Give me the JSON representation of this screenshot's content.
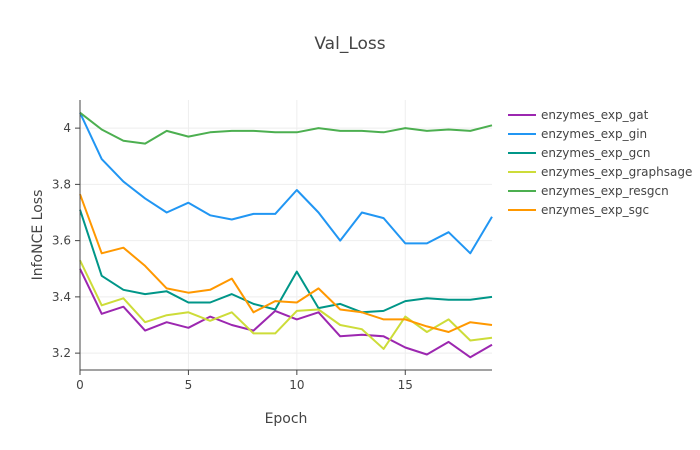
{
  "chart_data": {
    "type": "line",
    "title": "Val_Loss",
    "xlabel": "Epoch",
    "ylabel": "InfoNCE Loss",
    "xlim": [
      0,
      19
    ],
    "ylim": [
      3.14,
      4.1
    ],
    "x_ticks": [
      0,
      5,
      10,
      15
    ],
    "y_ticks": [
      3.2,
      3.4,
      3.6,
      3.8,
      4
    ],
    "x_tick_labels": [
      "0",
      "5",
      "10",
      "15"
    ],
    "y_tick_labels": [
      "3.2",
      "3.4",
      "3.6",
      "3.8",
      "4"
    ],
    "grid": true,
    "legend_position": "right",
    "x": [
      0,
      1,
      2,
      3,
      4,
      5,
      6,
      7,
      8,
      9,
      10,
      11,
      12,
      13,
      14,
      15,
      16,
      17,
      18,
      19
    ],
    "series": [
      {
        "name": "enzymes_exp_gat",
        "color": "#9c27b0",
        "values": [
          3.5,
          3.34,
          3.365,
          3.28,
          3.31,
          3.29,
          3.33,
          3.3,
          3.28,
          3.35,
          3.32,
          3.345,
          3.26,
          3.265,
          3.26,
          3.22,
          3.195,
          3.24,
          3.185,
          3.23
        ]
      },
      {
        "name": "enzymes_exp_gin",
        "color": "#2196f3",
        "values": [
          4.055,
          3.89,
          3.81,
          3.75,
          3.7,
          3.735,
          3.69,
          3.675,
          3.695,
          3.695,
          3.78,
          3.7,
          3.6,
          3.7,
          3.68,
          3.59,
          3.59,
          3.63,
          3.555,
          3.685
        ]
      },
      {
        "name": "enzymes_exp_gcn",
        "color": "#009688",
        "values": [
          3.71,
          3.475,
          3.425,
          3.41,
          3.42,
          3.38,
          3.38,
          3.41,
          3.375,
          3.355,
          3.49,
          3.36,
          3.375,
          3.345,
          3.35,
          3.385,
          3.395,
          3.39,
          3.39,
          3.4
        ]
      },
      {
        "name": "enzymes_exp_graphsage",
        "color": "#cddc39",
        "values": [
          3.53,
          3.37,
          3.395,
          3.31,
          3.335,
          3.345,
          3.315,
          3.345,
          3.27,
          3.27,
          3.35,
          3.355,
          3.3,
          3.285,
          3.215,
          3.33,
          3.275,
          3.32,
          3.245,
          3.255
        ]
      },
      {
        "name": "enzymes_exp_resgcn",
        "color": "#4caf50",
        "values": [
          4.055,
          3.995,
          3.955,
          3.945,
          3.99,
          3.97,
          3.985,
          3.99,
          3.99,
          3.985,
          3.985,
          4.0,
          3.99,
          3.99,
          3.985,
          4.0,
          3.99,
          3.995,
          3.99,
          4.01
        ]
      },
      {
        "name": "enzymes_exp_sgc",
        "color": "#ff9800",
        "values": [
          3.765,
          3.555,
          3.575,
          3.51,
          3.43,
          3.415,
          3.425,
          3.465,
          3.345,
          3.385,
          3.38,
          3.43,
          3.355,
          3.345,
          3.32,
          3.32,
          3.295,
          3.275,
          3.31,
          3.3
        ]
      }
    ]
  }
}
